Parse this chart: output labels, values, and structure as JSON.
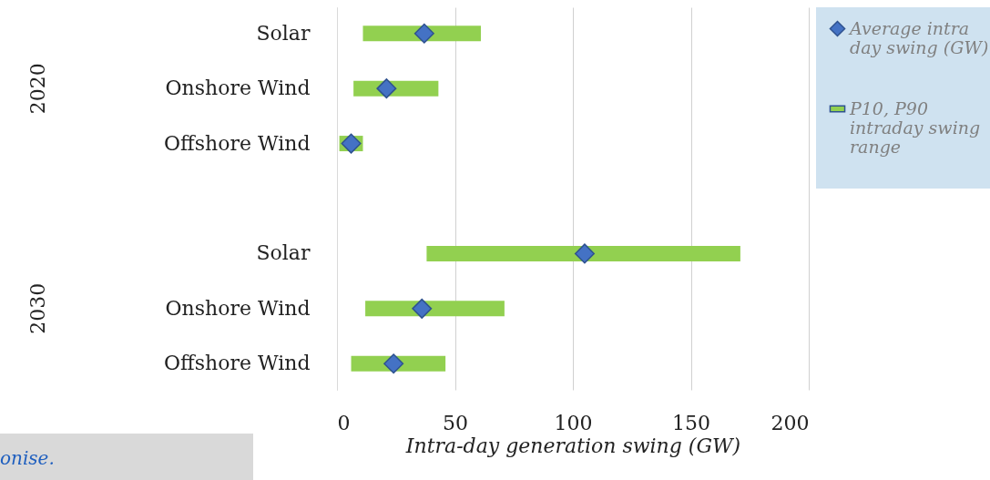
{
  "chart_data": {
    "type": "bar",
    "orientation": "horizontal",
    "categories": [
      "Solar",
      "Onshore Wind",
      "Offshore Wind",
      null,
      "Solar",
      "Onshore Wind",
      "Offshore Wind"
    ],
    "series": [
      {
        "name": "Average intra day swing (GW)",
        "type": "scatter",
        "color": "#4472c4",
        "values": [
          37,
          21,
          6,
          null,
          105,
          36,
          24
        ]
      },
      {
        "name": "P10, P90 intraday swing range",
        "color": "#92d050",
        "base": [
          11,
          7,
          1,
          null,
          38,
          12,
          6
        ],
        "values": [
          50,
          36,
          10,
          null,
          133,
          59,
          40
        ]
      }
    ],
    "xlabel": "Intra-day generation swing (GW)",
    "xlim": [
      0,
      200
    ],
    "xticks": [
      0,
      50,
      100,
      150,
      200
    ],
    "grid": "x",
    "legend": "right",
    "marker": "diamond",
    "annotations": [
      "2020",
      "2030",
      "onise."
    ]
  }
}
